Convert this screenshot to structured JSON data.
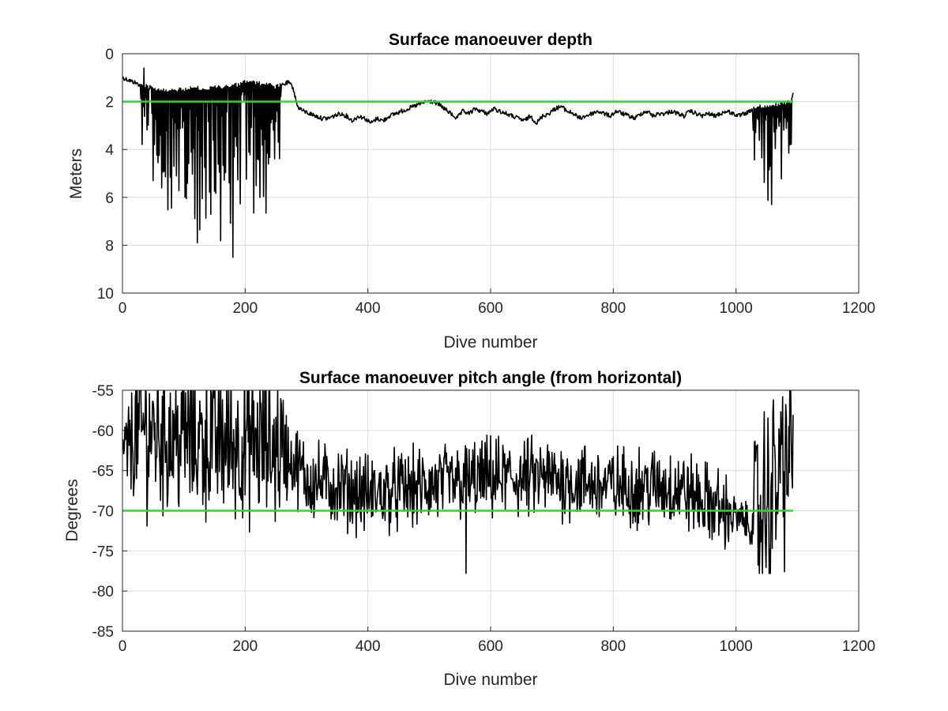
{
  "chart_data": [
    {
      "type": "line",
      "title": "Surface manoeuver depth",
      "xlabel": "Dive number",
      "ylabel": "Meters",
      "xlim": [
        0,
        1200
      ],
      "ylim": [
        0,
        10
      ],
      "y_reversed": true,
      "grid": true,
      "xticks": [
        "0",
        "200",
        "400",
        "600",
        "800",
        "1000",
        "1200"
      ],
      "yticks": [
        "0",
        "2",
        "4",
        "6",
        "8",
        "10"
      ],
      "reference_line": {
        "y": 2,
        "x": [
          0,
          1093
        ],
        "color": "#22dd22"
      },
      "series_color": "#000000",
      "series": [
        {
          "x": [
            0,
            10,
            20,
            28,
            35,
            45,
            60,
            80,
            100,
            120,
            140,
            160,
            175,
            190,
            200,
            210,
            220,
            235,
            250,
            255,
            262,
            270,
            278,
            285,
            295,
            305,
            315,
            325,
            335,
            345,
            355,
            365,
            375,
            385,
            395,
            405,
            415,
            425,
            435,
            445,
            455,
            465,
            475,
            485,
            495,
            505,
            515,
            525,
            535,
            545,
            555,
            565,
            575,
            585,
            595,
            605,
            615,
            625,
            635,
            645,
            655,
            665,
            675,
            685,
            695,
            705,
            715,
            725,
            735,
            745,
            755,
            765,
            775,
            785,
            795,
            805,
            815,
            825,
            835,
            845,
            855,
            865,
            875,
            885,
            895,
            905,
            915,
            925,
            935,
            945,
            955,
            965,
            975,
            985,
            995,
            1005,
            1015,
            1025,
            1030,
            1040,
            1050,
            1060,
            1070,
            1080,
            1090,
            1093
          ],
          "y": [
            1.0,
            1.1,
            1.2,
            1.3,
            1.35,
            1.4,
            1.5,
            1.55,
            1.5,
            1.45,
            1.45,
            1.4,
            1.35,
            1.3,
            1.15,
            1.2,
            1.25,
            1.3,
            1.4,
            1.35,
            1.3,
            1.2,
            1.4,
            2.2,
            2.4,
            2.5,
            2.6,
            2.7,
            2.7,
            2.6,
            2.5,
            2.6,
            2.8,
            2.6,
            2.7,
            2.9,
            2.7,
            2.8,
            2.6,
            2.5,
            2.4,
            2.3,
            2.2,
            2.1,
            2.0,
            2.0,
            2.1,
            2.3,
            2.5,
            2.7,
            2.4,
            2.5,
            2.3,
            2.4,
            2.5,
            2.3,
            2.4,
            2.5,
            2.6,
            2.7,
            2.8,
            2.6,
            2.9,
            2.6,
            2.5,
            2.3,
            2.2,
            2.4,
            2.5,
            2.7,
            2.6,
            2.5,
            2.4,
            2.5,
            2.6,
            2.4,
            2.5,
            2.6,
            2.7,
            2.5,
            2.4,
            2.6,
            2.5,
            2.5,
            2.4,
            2.5,
            2.6,
            2.4,
            2.5,
            2.6,
            2.5,
            2.6,
            2.5,
            2.4,
            2.5,
            2.6,
            2.5,
            2.4,
            2.3,
            2.2,
            2.2,
            2.2,
            2.1,
            2.1,
            2.0,
            1.6
          ],
          "spike_regions": [
            {
              "x": [
                30,
                258
              ],
              "low": [
                1.4,
                1.2
              ],
              "high": [
                6.2,
                8.5
              ]
            },
            {
              "x": [
                1028,
                1093
              ],
              "low": [
                2.2,
                2.0
              ],
              "high": [
                5.0,
                6.3
              ]
            }
          ]
        }
      ]
    },
    {
      "type": "line",
      "title": "Surface manoeuver pitch angle (from horizontal)",
      "xlabel": "Dive number",
      "ylabel": "Degrees",
      "xlim": [
        0,
        1200
      ],
      "ylim": [
        -85,
        -55
      ],
      "grid": true,
      "xticks": [
        "0",
        "200",
        "400",
        "600",
        "800",
        "1000",
        "1200"
      ],
      "yticks": [
        "-55",
        "-60",
        "-65",
        "-70",
        "-75",
        "-80",
        "-85"
      ],
      "reference_line": {
        "y": -70,
        "x": [
          0,
          1093
        ],
        "color": "#22dd22"
      },
      "series_color": "#000000",
      "series": [
        {
          "x_range": [
            0,
            1093
          ],
          "center": [
            [
              0,
              -63
            ],
            [
              30,
              -60
            ],
            [
              120,
              -61
            ],
            [
              258,
              -62
            ],
            [
              300,
              -66
            ],
            [
              400,
              -68
            ],
            [
              500,
              -67
            ],
            [
              600,
              -66
            ],
            [
              700,
              -66
            ],
            [
              800,
              -67
            ],
            [
              900,
              -67
            ],
            [
              980,
              -70
            ],
            [
              1030,
              -72
            ],
            [
              1093,
              -62
            ]
          ],
          "amplitude": [
            [
              0,
              3
            ],
            [
              30,
              8
            ],
            [
              258,
              8
            ],
            [
              270,
              4
            ],
            [
              980,
              4
            ],
            [
              1000,
              2
            ],
            [
              1028,
              2
            ],
            [
              1030,
              10
            ],
            [
              1093,
              10
            ]
          ],
          "min_value": -77.8,
          "max_value": -55
        }
      ]
    }
  ]
}
